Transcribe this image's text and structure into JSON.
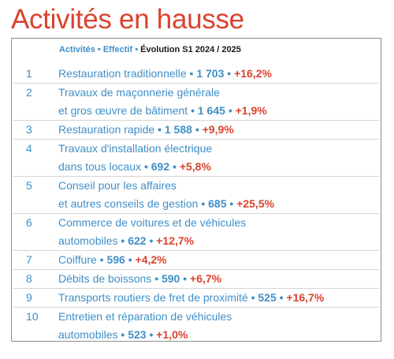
{
  "title": "Activités en hausse",
  "header": {
    "col_activity": "Activités",
    "col_staff": "Effectif",
    "col_evolution": "Évolution S1 2024 / 2025",
    "separator": "•"
  },
  "rows": [
    {
      "rank": "1",
      "lines": [
        "Restauration traditionnelle"
      ],
      "count": "1 703",
      "change": "+16,2%"
    },
    {
      "rank": "2",
      "lines": [
        "Travaux de maçonnerie générale",
        "et gros œuvre de bâtiment"
      ],
      "count": "1 645",
      "change": "+1,9%"
    },
    {
      "rank": "3",
      "lines": [
        "Restauration rapide"
      ],
      "count": "1 588",
      "change": "+9,9%"
    },
    {
      "rank": "4",
      "lines": [
        "Travaux d'installation électrique",
        "dans tous locaux"
      ],
      "count": "692",
      "change": "+5,8%"
    },
    {
      "rank": "5",
      "lines": [
        "Conseil pour les affaires",
        "et autres conseils de gestion"
      ],
      "count": "685",
      "change": "+25,5%"
    },
    {
      "rank": "6",
      "lines": [
        "Commerce de voitures et de véhicules",
        "automobiles"
      ],
      "count": "622",
      "change": "+12,7%"
    },
    {
      "rank": "7",
      "lines": [
        "Coiffure"
      ],
      "count": "596",
      "change": "+4,2%"
    },
    {
      "rank": "8",
      "lines": [
        "Débits de boissons"
      ],
      "count": "590",
      "change": "+6,7%"
    },
    {
      "rank": "9",
      "lines": [
        "Transports routiers de fret de proximité"
      ],
      "count": "525",
      "change": "+16,7%"
    },
    {
      "rank": "10",
      "lines": [
        "Entretien et réparation de véhicules",
        "automobiles"
      ],
      "count": "523",
      "change": "+1,0%"
    }
  ]
}
